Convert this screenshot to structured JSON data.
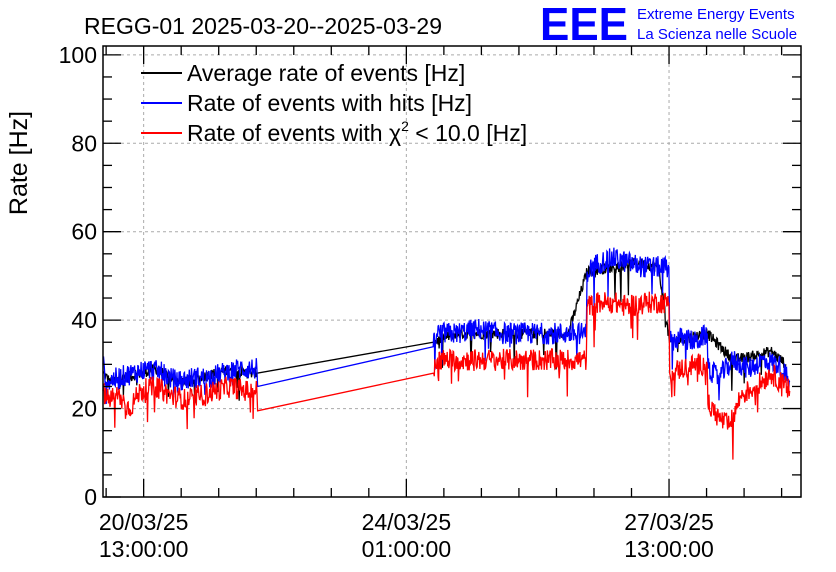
{
  "chart_data": {
    "type": "line",
    "title": "REGG-01 2025-03-20--2025-03-29",
    "ylabel": "Rate [Hz]",
    "xlabel": "",
    "ylim": [
      0,
      102
    ],
    "yticks": [
      0,
      20,
      40,
      60,
      80,
      100
    ],
    "x_unit": "days since 2025-03-20 00:00",
    "xlim": [
      0,
      9.3
    ],
    "xticks": [
      {
        "x": 0.5417,
        "line1": "20/03/25",
        "line2": "13:00:00"
      },
      {
        "x": 4.0417,
        "line1": "24/03/25",
        "line2": "01:00:00"
      },
      {
        "x": 7.5417,
        "line1": "27/03/25",
        "line2": "13:00:00"
      }
    ],
    "grid": true,
    "legend_position": "top-left",
    "series": [
      {
        "name": "Average rate of events [Hz]",
        "color": "#000000",
        "x": [
          0.0,
          0.1,
          0.3,
          0.5,
          0.7,
          0.9,
          1.1,
          1.3,
          1.5,
          1.7,
          1.9,
          2.05,
          4.4,
          4.7,
          5.0,
          5.3,
          5.6,
          5.9,
          6.2,
          6.45,
          6.8,
          7.1,
          7.4,
          7.55,
          7.8,
          8.05,
          8.4,
          8.7,
          8.9,
          9.1
        ],
        "values": [
          28,
          26,
          27,
          28,
          29,
          27,
          26,
          27,
          28,
          29,
          28,
          28,
          35,
          37,
          37,
          37,
          37,
          37,
          37,
          51,
          52,
          53,
          52,
          35,
          36,
          37,
          31,
          32,
          33,
          30
        ],
        "label_x": "Average rate of events [Hz]"
      },
      {
        "name": "Rate of events with hits [Hz]",
        "color": "#0000ff",
        "x": [
          0.0,
          0.05,
          0.2,
          0.4,
          0.6,
          0.8,
          1.0,
          1.2,
          1.4,
          1.6,
          1.8,
          2.0,
          2.05,
          2.06,
          4.4,
          4.45,
          4.7,
          5.0,
          5.3,
          5.6,
          5.9,
          6.2,
          6.44,
          6.45,
          6.6,
          6.8,
          7.0,
          7.2,
          7.4,
          7.54,
          7.55,
          7.7,
          7.9,
          8.05,
          8.06,
          8.2,
          8.4,
          8.6,
          8.8,
          9.0,
          9.15
        ],
        "values": [
          30,
          26,
          27,
          28,
          29,
          28,
          26,
          27,
          27,
          28,
          29,
          29,
          29,
          25,
          34,
          37,
          37,
          38,
          37,
          37,
          37,
          37,
          37,
          51,
          53,
          54,
          53,
          52,
          52,
          52,
          35,
          36,
          35,
          37,
          29,
          27,
          31,
          29,
          31,
          30,
          26
        ],
        "label_x": "Rate of events with hits [Hz]"
      },
      {
        "name": "Rate of events with χ² < 10.0 [Hz]",
        "color": "#ff0000",
        "x": [
          0.0,
          0.05,
          0.2,
          0.35,
          0.5,
          0.7,
          0.9,
          1.1,
          1.3,
          1.5,
          1.7,
          1.9,
          2.05,
          2.06,
          4.4,
          4.45,
          4.7,
          5.0,
          5.3,
          5.6,
          5.9,
          6.2,
          6.44,
          6.45,
          6.6,
          6.8,
          7.0,
          7.2,
          7.4,
          7.54,
          7.55,
          7.7,
          7.9,
          8.05,
          8.06,
          8.2,
          8.35,
          8.5,
          8.7,
          8.9,
          9.15
        ],
        "values": [
          24,
          22,
          23,
          20,
          24,
          25,
          23,
          22,
          23,
          24,
          25,
          24,
          24,
          19.5,
          28,
          31,
          31,
          31,
          31,
          31,
          31,
          31,
          31,
          43,
          44,
          44,
          43,
          44,
          44,
          44,
          28,
          29,
          30,
          30,
          21,
          18,
          16,
          23,
          25,
          28,
          24
        ],
        "label_x": "Rate of events with χ² < 10.0 [Hz]"
      }
    ]
  },
  "legend": {
    "entries": [
      "Average rate of events [Hz]",
      "Rate of events with hits [Hz]",
      "Rate of events with "
    ],
    "chi_label_main": "Rate of events with ",
    "chi_symbol": "χ",
    "chi_sup": "2",
    "chi_tail": " < 10.0 [Hz]"
  },
  "logo": {
    "mark": "EEE",
    "line1": "Extreme Energy Events",
    "line2": "La Scienza nelle Scuole",
    "color": "#0000ff"
  }
}
